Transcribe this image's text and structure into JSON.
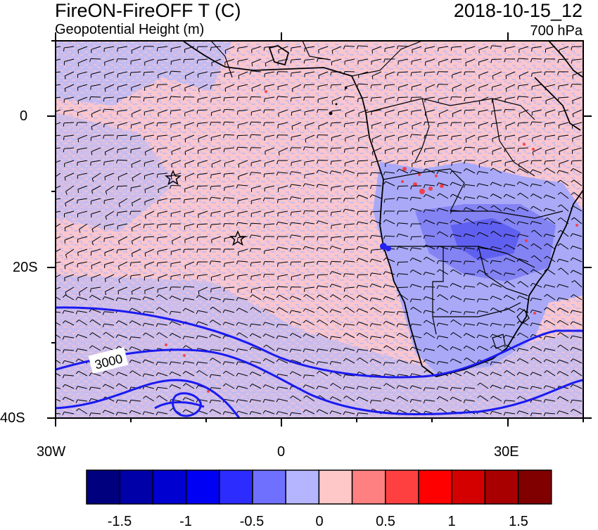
{
  "header": {
    "title_left": "FireON-FireOFF T (C)",
    "subtitle_left": "Geopotential Height (m)",
    "title_right": "2018-10-15_12",
    "subtitle_right": "700 hPa"
  },
  "axes": {
    "lat_labels": [
      "0",
      "20S",
      "40S"
    ],
    "lon_labels": [
      "30W",
      "0",
      "30E"
    ]
  },
  "contour": {
    "label": "3000"
  },
  "colorbar": {
    "labels": [
      "-1.5",
      "-1",
      "-0.5",
      "0",
      "0.5",
      "1",
      "1.5"
    ],
    "colors": [
      "#00007f",
      "#0000a8",
      "#0000d0",
      "#0000f5",
      "#2c2cff",
      "#7070ff",
      "#b4b4ff",
      "#ffc8c8",
      "#ff8080",
      "#ff4040",
      "#ff0000",
      "#d40000",
      "#a80000",
      "#800000"
    ]
  },
  "colors": {
    "warm_bg": "#fbc6cd",
    "cool_bg": "#b9b9f7",
    "strong_cool": "#7c7cf3",
    "contour": "#1a1af0",
    "coast": "#000000"
  }
}
